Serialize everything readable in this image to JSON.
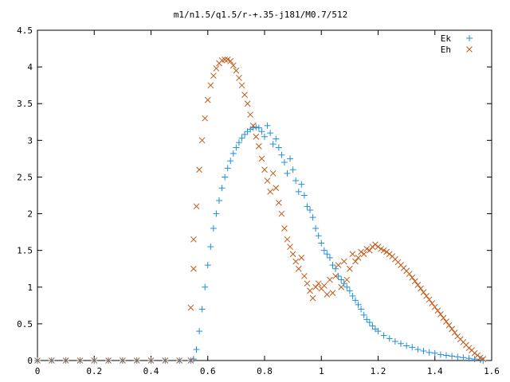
{
  "chart_data": {
    "type": "scatter",
    "title": "m1/n1.5/q1.5/r-+.35-j181/M0.7/512",
    "xlabel": "",
    "ylabel": "",
    "xlim": [
      0,
      1.6
    ],
    "ylim": [
      0,
      4.5
    ],
    "x_ticks": [
      "0",
      "0.2",
      "0.4",
      "0.6",
      "0.8",
      "1",
      "1.2",
      "1.4",
      "1.6"
    ],
    "y_ticks": [
      "0",
      "0.5",
      "1",
      "1.5",
      "2",
      "2.5",
      "3",
      "3.5",
      "4",
      "4.5"
    ],
    "grid": false,
    "legend_position": "top-right",
    "series": [
      {
        "name": "Ek",
        "marker": "plus",
        "color": "#1f8fe0",
        "points": [
          [
            0.0,
            0.0
          ],
          [
            0.05,
            0.0
          ],
          [
            0.1,
            0.0
          ],
          [
            0.15,
            0.0
          ],
          [
            0.2,
            0.0
          ],
          [
            0.25,
            0.0
          ],
          [
            0.3,
            0.0
          ],
          [
            0.35,
            0.0
          ],
          [
            0.4,
            0.0
          ],
          [
            0.45,
            0.0
          ],
          [
            0.5,
            0.0
          ],
          [
            0.54,
            0.0
          ],
          [
            0.55,
            0.02
          ],
          [
            0.56,
            0.15
          ],
          [
            0.57,
            0.4
          ],
          [
            0.58,
            0.7
          ],
          [
            0.59,
            1.0
          ],
          [
            0.6,
            1.3
          ],
          [
            0.61,
            1.55
          ],
          [
            0.62,
            1.8
          ],
          [
            0.63,
            2.0
          ],
          [
            0.64,
            2.18
          ],
          [
            0.65,
            2.35
          ],
          [
            0.66,
            2.5
          ],
          [
            0.67,
            2.62
          ],
          [
            0.68,
            2.72
          ],
          [
            0.69,
            2.82
          ],
          [
            0.7,
            2.9
          ],
          [
            0.71,
            2.97
          ],
          [
            0.72,
            3.03
          ],
          [
            0.73,
            3.08
          ],
          [
            0.74,
            3.12
          ],
          [
            0.75,
            3.15
          ],
          [
            0.76,
            3.17
          ],
          [
            0.77,
            3.18
          ],
          [
            0.78,
            3.17
          ],
          [
            0.79,
            3.12
          ],
          [
            0.8,
            3.05
          ],
          [
            0.81,
            3.2
          ],
          [
            0.82,
            3.1
          ],
          [
            0.83,
            2.95
          ],
          [
            0.84,
            3.02
          ],
          [
            0.85,
            2.9
          ],
          [
            0.86,
            2.8
          ],
          [
            0.87,
            2.7
          ],
          [
            0.88,
            2.55
          ],
          [
            0.89,
            2.75
          ],
          [
            0.9,
            2.6
          ],
          [
            0.91,
            2.45
          ],
          [
            0.92,
            2.3
          ],
          [
            0.93,
            2.4
          ],
          [
            0.94,
            2.25
          ],
          [
            0.95,
            2.1
          ],
          [
            0.96,
            2.05
          ],
          [
            0.97,
            1.95
          ],
          [
            0.98,
            1.8
          ],
          [
            0.99,
            1.7
          ],
          [
            1.0,
            1.6
          ],
          [
            1.01,
            1.5
          ],
          [
            1.02,
            1.45
          ],
          [
            1.03,
            1.4
          ],
          [
            1.04,
            1.3
          ],
          [
            1.05,
            1.25
          ],
          [
            1.06,
            1.15
          ],
          [
            1.07,
            1.1
          ],
          [
            1.08,
            1.05
          ],
          [
            1.09,
            1.0
          ],
          [
            1.1,
            0.95
          ],
          [
            1.11,
            0.88
          ],
          [
            1.12,
            0.82
          ],
          [
            1.13,
            0.76
          ],
          [
            1.14,
            0.7
          ],
          [
            1.15,
            0.62
          ],
          [
            1.16,
            0.56
          ],
          [
            1.17,
            0.52
          ],
          [
            1.18,
            0.47
          ],
          [
            1.19,
            0.43
          ],
          [
            1.2,
            0.4
          ],
          [
            1.22,
            0.34
          ],
          [
            1.24,
            0.3
          ],
          [
            1.26,
            0.26
          ],
          [
            1.28,
            0.23
          ],
          [
            1.3,
            0.2
          ],
          [
            1.32,
            0.18
          ],
          [
            1.34,
            0.15
          ],
          [
            1.36,
            0.13
          ],
          [
            1.38,
            0.11
          ],
          [
            1.4,
            0.1
          ],
          [
            1.42,
            0.08
          ],
          [
            1.44,
            0.07
          ],
          [
            1.46,
            0.06
          ],
          [
            1.48,
            0.05
          ],
          [
            1.5,
            0.04
          ],
          [
            1.52,
            0.03
          ],
          [
            1.54,
            0.02
          ],
          [
            1.56,
            0.01
          ],
          [
            1.57,
            0.0
          ]
        ]
      },
      {
        "name": "Eh",
        "marker": "cross",
        "color": "#c05a18",
        "points": [
          [
            0.0,
            0.0
          ],
          [
            0.05,
            0.0
          ],
          [
            0.1,
            0.0
          ],
          [
            0.15,
            0.0
          ],
          [
            0.2,
            0.0
          ],
          [
            0.25,
            0.0
          ],
          [
            0.3,
            0.0
          ],
          [
            0.35,
            0.0
          ],
          [
            0.4,
            0.0
          ],
          [
            0.45,
            0.0
          ],
          [
            0.5,
            0.0
          ],
          [
            0.54,
            0.0
          ],
          [
            0.54,
            0.72
          ],
          [
            0.55,
            1.25
          ],
          [
            0.55,
            1.65
          ],
          [
            0.56,
            2.1
          ],
          [
            0.57,
            2.6
          ],
          [
            0.58,
            3.0
          ],
          [
            0.59,
            3.3
          ],
          [
            0.6,
            3.55
          ],
          [
            0.61,
            3.75
          ],
          [
            0.62,
            3.88
          ],
          [
            0.63,
            3.98
          ],
          [
            0.64,
            4.05
          ],
          [
            0.65,
            4.09
          ],
          [
            0.66,
            4.1
          ],
          [
            0.67,
            4.1
          ],
          [
            0.68,
            4.08
          ],
          [
            0.69,
            4.02
          ],
          [
            0.7,
            3.95
          ],
          [
            0.71,
            3.85
          ],
          [
            0.72,
            3.75
          ],
          [
            0.73,
            3.62
          ],
          [
            0.74,
            3.5
          ],
          [
            0.75,
            3.35
          ],
          [
            0.76,
            3.2
          ],
          [
            0.77,
            3.05
          ],
          [
            0.78,
            2.92
          ],
          [
            0.79,
            2.75
          ],
          [
            0.8,
            2.6
          ],
          [
            0.81,
            2.45
          ],
          [
            0.82,
            2.3
          ],
          [
            0.83,
            2.55
          ],
          [
            0.84,
            2.35
          ],
          [
            0.85,
            2.15
          ],
          [
            0.86,
            2.0
          ],
          [
            0.87,
            1.8
          ],
          [
            0.88,
            1.65
          ],
          [
            0.89,
            1.55
          ],
          [
            0.9,
            1.45
          ],
          [
            0.91,
            1.35
          ],
          [
            0.92,
            1.25
          ],
          [
            0.93,
            1.4
          ],
          [
            0.94,
            1.15
          ],
          [
            0.95,
            1.05
          ],
          [
            0.96,
            0.95
          ],
          [
            0.97,
            0.85
          ],
          [
            0.98,
            1.0
          ],
          [
            0.99,
            1.05
          ],
          [
            1.0,
            0.98
          ],
          [
            1.01,
            1.02
          ],
          [
            1.02,
            0.9
          ],
          [
            1.03,
            1.1
          ],
          [
            1.04,
            0.92
          ],
          [
            1.05,
            1.15
          ],
          [
            1.06,
            1.3
          ],
          [
            1.07,
            1.0
          ],
          [
            1.08,
            1.35
          ],
          [
            1.09,
            1.1
          ],
          [
            1.1,
            1.25
          ],
          [
            1.11,
            1.45
          ],
          [
            1.12,
            1.35
          ],
          [
            1.13,
            1.4
          ],
          [
            1.14,
            1.48
          ],
          [
            1.15,
            1.45
          ],
          [
            1.16,
            1.52
          ],
          [
            1.17,
            1.5
          ],
          [
            1.18,
            1.55
          ],
          [
            1.19,
            1.58
          ],
          [
            1.2,
            1.55
          ],
          [
            1.21,
            1.52
          ],
          [
            1.22,
            1.5
          ],
          [
            1.23,
            1.48
          ],
          [
            1.24,
            1.45
          ],
          [
            1.25,
            1.42
          ],
          [
            1.26,
            1.38
          ],
          [
            1.27,
            1.34
          ],
          [
            1.28,
            1.3
          ],
          [
            1.29,
            1.26
          ],
          [
            1.3,
            1.22
          ],
          [
            1.31,
            1.18
          ],
          [
            1.32,
            1.13
          ],
          [
            1.33,
            1.08
          ],
          [
            1.34,
            1.03
          ],
          [
            1.35,
            0.98
          ],
          [
            1.36,
            0.93
          ],
          [
            1.37,
            0.88
          ],
          [
            1.38,
            0.83
          ],
          [
            1.39,
            0.78
          ],
          [
            1.4,
            0.73
          ],
          [
            1.41,
            0.68
          ],
          [
            1.42,
            0.63
          ],
          [
            1.43,
            0.58
          ],
          [
            1.44,
            0.53
          ],
          [
            1.45,
            0.48
          ],
          [
            1.46,
            0.43
          ],
          [
            1.47,
            0.38
          ],
          [
            1.48,
            0.33
          ],
          [
            1.49,
            0.29
          ],
          [
            1.5,
            0.25
          ],
          [
            1.51,
            0.21
          ],
          [
            1.52,
            0.17
          ],
          [
            1.53,
            0.14
          ],
          [
            1.54,
            0.1
          ],
          [
            1.55,
            0.07
          ],
          [
            1.56,
            0.04
          ],
          [
            1.57,
            0.02
          ]
        ]
      }
    ]
  }
}
